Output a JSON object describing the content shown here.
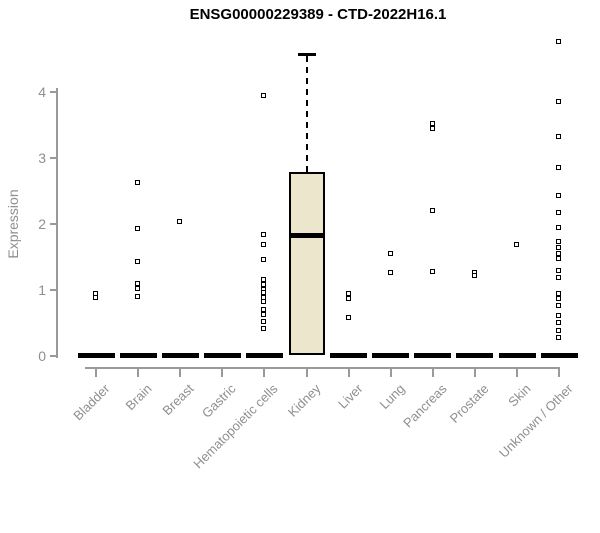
{
  "chart_data": {
    "type": "boxplot",
    "title": "ENSG00000229389 - CTD-2022H16.1",
    "ylabel": "Expression",
    "xlabel": "",
    "ylim": [
      0,
      4.8
    ],
    "yticks": [
      0,
      1,
      2,
      3,
      4
    ],
    "grid": false,
    "legend": false,
    "categories": [
      "Bladder",
      "Brain",
      "Breast",
      "Gastric",
      "Hematopoietic cells",
      "Kidney",
      "Liver",
      "Lung",
      "Pancreas",
      "Prostate",
      "Skin",
      "Unknown / Other"
    ],
    "boxes": [
      {
        "category": "Bladder",
        "q1": 0,
        "median": 0,
        "q3": 0,
        "whisker_low": 0,
        "whisker_high": 0,
        "outliers": [
          0.94,
          0.88
        ]
      },
      {
        "category": "Brain",
        "q1": 0,
        "median": 0,
        "q3": 0,
        "whisker_low": 0,
        "whisker_high": 0,
        "outliers": [
          2.62,
          1.93,
          1.42,
          1.1,
          1.01,
          0.9
        ]
      },
      {
        "category": "Breast",
        "q1": 0,
        "median": 0,
        "q3": 0,
        "whisker_low": 0,
        "whisker_high": 0,
        "outliers": [
          2.03
        ]
      },
      {
        "category": "Gastric",
        "q1": 0,
        "median": 0,
        "q3": 0,
        "whisker_low": 0,
        "whisker_high": 0,
        "outliers": []
      },
      {
        "category": "Hematopoietic cells",
        "q1": 0,
        "median": 0,
        "q3": 0,
        "whisker_low": 0,
        "whisker_high": 0,
        "outliers": [
          3.95,
          1.83,
          1.68,
          1.45,
          1.15,
          1.08,
          1.0,
          0.95,
          0.88,
          0.82,
          0.7,
          0.62,
          0.52,
          0.41
        ]
      },
      {
        "category": "Kidney",
        "q1": 0,
        "median": 1.82,
        "q3": 2.78,
        "whisker_low": 0,
        "whisker_high": 4.58,
        "outliers": []
      },
      {
        "category": "Liver",
        "q1": 0,
        "median": 0,
        "q3": 0,
        "whisker_low": 0,
        "whisker_high": 0,
        "outliers": [
          0.94,
          0.86,
          0.58
        ]
      },
      {
        "category": "Lung",
        "q1": 0,
        "median": 0,
        "q3": 0,
        "whisker_low": 0,
        "whisker_high": 0,
        "outliers": [
          1.55,
          1.26
        ]
      },
      {
        "category": "Pancreas",
        "q1": 0,
        "median": 0,
        "q3": 0,
        "whisker_low": 0,
        "whisker_high": 0,
        "outliers": [
          3.52,
          3.45,
          2.2,
          1.27
        ]
      },
      {
        "category": "Prostate",
        "q1": 0,
        "median": 0,
        "q3": 0,
        "whisker_low": 0,
        "whisker_high": 0,
        "outliers": [
          1.26,
          1.22
        ]
      },
      {
        "category": "Skin",
        "q1": 0,
        "median": 0,
        "q3": 0,
        "whisker_low": 0,
        "whisker_high": 0,
        "outliers": [
          1.69
        ]
      },
      {
        "category": "Unknown / Other",
        "q1": 0,
        "median": 0,
        "q3": 0,
        "whisker_low": 0,
        "whisker_high": 0,
        "outliers": [
          4.76,
          3.86,
          3.33,
          2.86,
          2.43,
          2.17,
          1.95,
          1.73,
          1.64,
          1.55,
          1.47,
          1.29,
          1.18,
          0.94,
          0.86,
          0.76,
          0.6,
          0.5,
          0.38,
          0.28
        ]
      }
    ],
    "colors": {
      "box_fill": "#ece7cc",
      "box_border": "#000000",
      "median": "#000000",
      "outlier": "#000000",
      "axis": "#9a9a9a",
      "tick_label": "#8f8f8f",
      "title": "#000000",
      "background": "#ffffff"
    }
  }
}
